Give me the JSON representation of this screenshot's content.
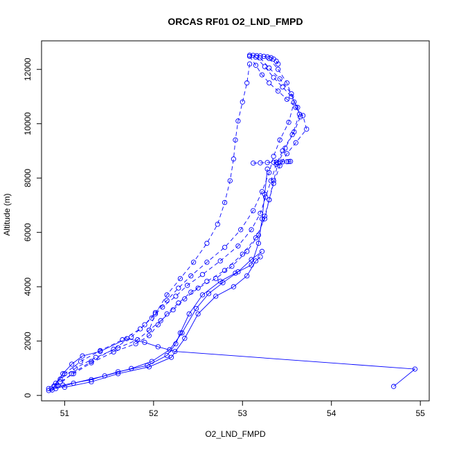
{
  "chart_data": {
    "type": "line",
    "title": "ORCAS RF01 O2_LND_FMPD",
    "xlabel": "O2_LND_FMPD",
    "ylabel": "Altitude (m)",
    "xlim": [
      50.74,
      55.1
    ],
    "ylim": [
      -200,
      13050
    ],
    "xticks": [
      51,
      52,
      53,
      54,
      55
    ],
    "yticks": [
      0,
      2000,
      4000,
      6000,
      8000,
      10000,
      12000
    ],
    "grid": false,
    "legend": "none",
    "marker": "open-circle",
    "color": "#0000ff",
    "series": [
      {
        "line_style": "solid",
        "x": [
          54.7,
          54.94,
          52.24,
          52.05,
          51.9,
          51.7,
          51.4,
          51.2,
          51.08,
          50.98,
          50.9,
          50.86
        ],
        "y": [
          330,
          970,
          1620,
          1790,
          1950,
          2090,
          1620,
          1450,
          1150,
          800,
          450,
          200
        ]
      },
      {
        "line_style": "solid",
        "x": [
          50.82,
          50.98,
          51.3,
          51.6,
          51.93,
          52.15,
          52.25,
          52.3,
          52.4,
          52.55,
          52.75,
          52.92,
          53.1,
          53.18,
          53.22,
          53.25,
          53.28
        ],
        "y": [
          180,
          380,
          580,
          870,
          1100,
          1470,
          1900,
          2300,
          3000,
          3700,
          4200,
          4500,
          4800,
          5600,
          6500,
          7400,
          8330
        ]
      },
      {
        "line_style": "solid",
        "x": [
          50.9,
          51.1,
          51.45,
          51.75,
          51.98,
          52.18,
          52.32,
          52.48,
          52.62,
          52.78,
          52.95,
          53.1,
          53.22
        ],
        "y": [
          250,
          450,
          720,
          990,
          1250,
          1680,
          2300,
          3200,
          3750,
          4150,
          4550,
          5000,
          5300
        ]
      },
      {
        "line_style": "solid",
        "x": [
          51.0,
          51.3,
          51.6,
          51.95,
          52.2,
          52.35,
          52.5,
          52.7,
          52.9,
          53.05,
          53.15,
          53.2
        ],
        "y": [
          300,
          500,
          800,
          1050,
          1400,
          2100,
          3000,
          3650,
          4000,
          4400,
          4950,
          5100
        ]
      },
      {
        "line_style": "dashed",
        "x": [
          53.08,
          53.15,
          53.22,
          53.3,
          53.4,
          53.5,
          53.6,
          53.68,
          53.72,
          53.6,
          53.5,
          53.42,
          53.35,
          53.3,
          53.25,
          53.15,
          53.0,
          52.8,
          52.6,
          52.42,
          52.28,
          52.15,
          52.05,
          51.95,
          51.8,
          51.55,
          51.3,
          51.1,
          50.95,
          50.85
        ],
        "y": [
          12480,
          12150,
          11800,
          11500,
          11200,
          10900,
          10600,
          10300,
          9800,
          9300,
          8900,
          8450,
          7800,
          7200,
          6500,
          5800,
          5200,
          4600,
          4200,
          3800,
          3400,
          3000,
          2600,
          2200,
          1900,
          1600,
          1200,
          800,
          500,
          250
        ]
      },
      {
        "line_style": "dashed",
        "x": [
          53.15,
          53.25,
          53.35,
          53.45,
          53.55,
          53.62,
          53.65,
          53.58,
          53.48,
          53.4,
          53.35,
          53.3,
          53.25,
          53.18,
          53.05,
          52.88,
          52.7,
          52.5,
          52.35,
          52.22,
          52.08,
          51.95,
          51.82,
          51.6,
          51.35,
          51.12,
          50.95,
          50.82
        ],
        "y": [
          12450,
          12100,
          11700,
          11350,
          11000,
          10600,
          10250,
          9700,
          9100,
          8550,
          7900,
          7200,
          6600,
          5900,
          5300,
          4750,
          4300,
          3950,
          3550,
          3150,
          2750,
          2400,
          2050,
          1750,
          1400,
          1000,
          600,
          250
        ]
      },
      {
        "line_style": "dashed",
        "x": [
          53.2,
          53.3,
          53.42,
          53.55,
          53.64,
          53.56,
          53.45,
          53.38,
          53.32,
          53.26,
          53.2,
          53.1,
          52.95,
          52.75,
          52.55,
          52.38,
          52.25,
          52.1,
          51.98,
          51.85,
          51.65,
          51.4,
          51.18,
          51.0,
          50.88
        ],
        "y": [
          12420,
          12050,
          11650,
          11100,
          10350,
          9600,
          9000,
          8500,
          7900,
          7300,
          6700,
          6100,
          5500,
          4950,
          4450,
          4050,
          3650,
          3250,
          2850,
          2450,
          2050,
          1650,
          1250,
          800,
          350
        ]
      },
      {
        "line_style": "dashed",
        "x": [
          53.3,
          53.4,
          53.5,
          53.58,
          53.52,
          53.42,
          53.35,
          53.3,
          53.22,
          53.12,
          52.98,
          52.8,
          52.6,
          52.42,
          52.28,
          52.15,
          52.02,
          51.9,
          51.75,
          51.55,
          51.3,
          51.08,
          50.92
        ],
        "y": [
          12400,
          12000,
          11500,
          10800,
          10050,
          9400,
          8800,
          8200,
          7500,
          6800,
          6100,
          5450,
          4900,
          4400,
          3950,
          3500,
          3050,
          2600,
          2150,
          1700,
          1250,
          800,
          350
        ]
      },
      {
        "line_style": "dashed",
        "x": [
          53.08,
          53.05,
          53.0,
          52.95,
          52.92,
          52.9,
          52.86,
          52.8,
          52.72,
          52.6,
          52.45,
          52.3,
          52.15,
          52.02,
          51.95
        ],
        "y": [
          12200,
          11500,
          10800,
          10100,
          9400,
          8700,
          7900,
          7100,
          6300,
          5600,
          4900,
          4300,
          3700,
          3000,
          2400
        ]
      },
      {
        "line_style": "dashed",
        "x": [
          53.12,
          53.2,
          53.28,
          53.35,
          53.38,
          53.42,
          53.45,
          53.5,
          53.52,
          53.54
        ],
        "y": [
          8550,
          8560,
          8570,
          8580,
          8585,
          8590,
          8595,
          8600,
          8605,
          8610
        ]
      },
      {
        "line_style": "dashed",
        "x": [
          53.08,
          53.12,
          53.16,
          53.2,
          53.24,
          53.28,
          53.32,
          53.35,
          53.38,
          53.4
        ],
        "y": [
          12520,
          12515,
          12505,
          12495,
          12480,
          12460,
          12430,
          12380,
          12300,
          12200
        ]
      }
    ]
  }
}
